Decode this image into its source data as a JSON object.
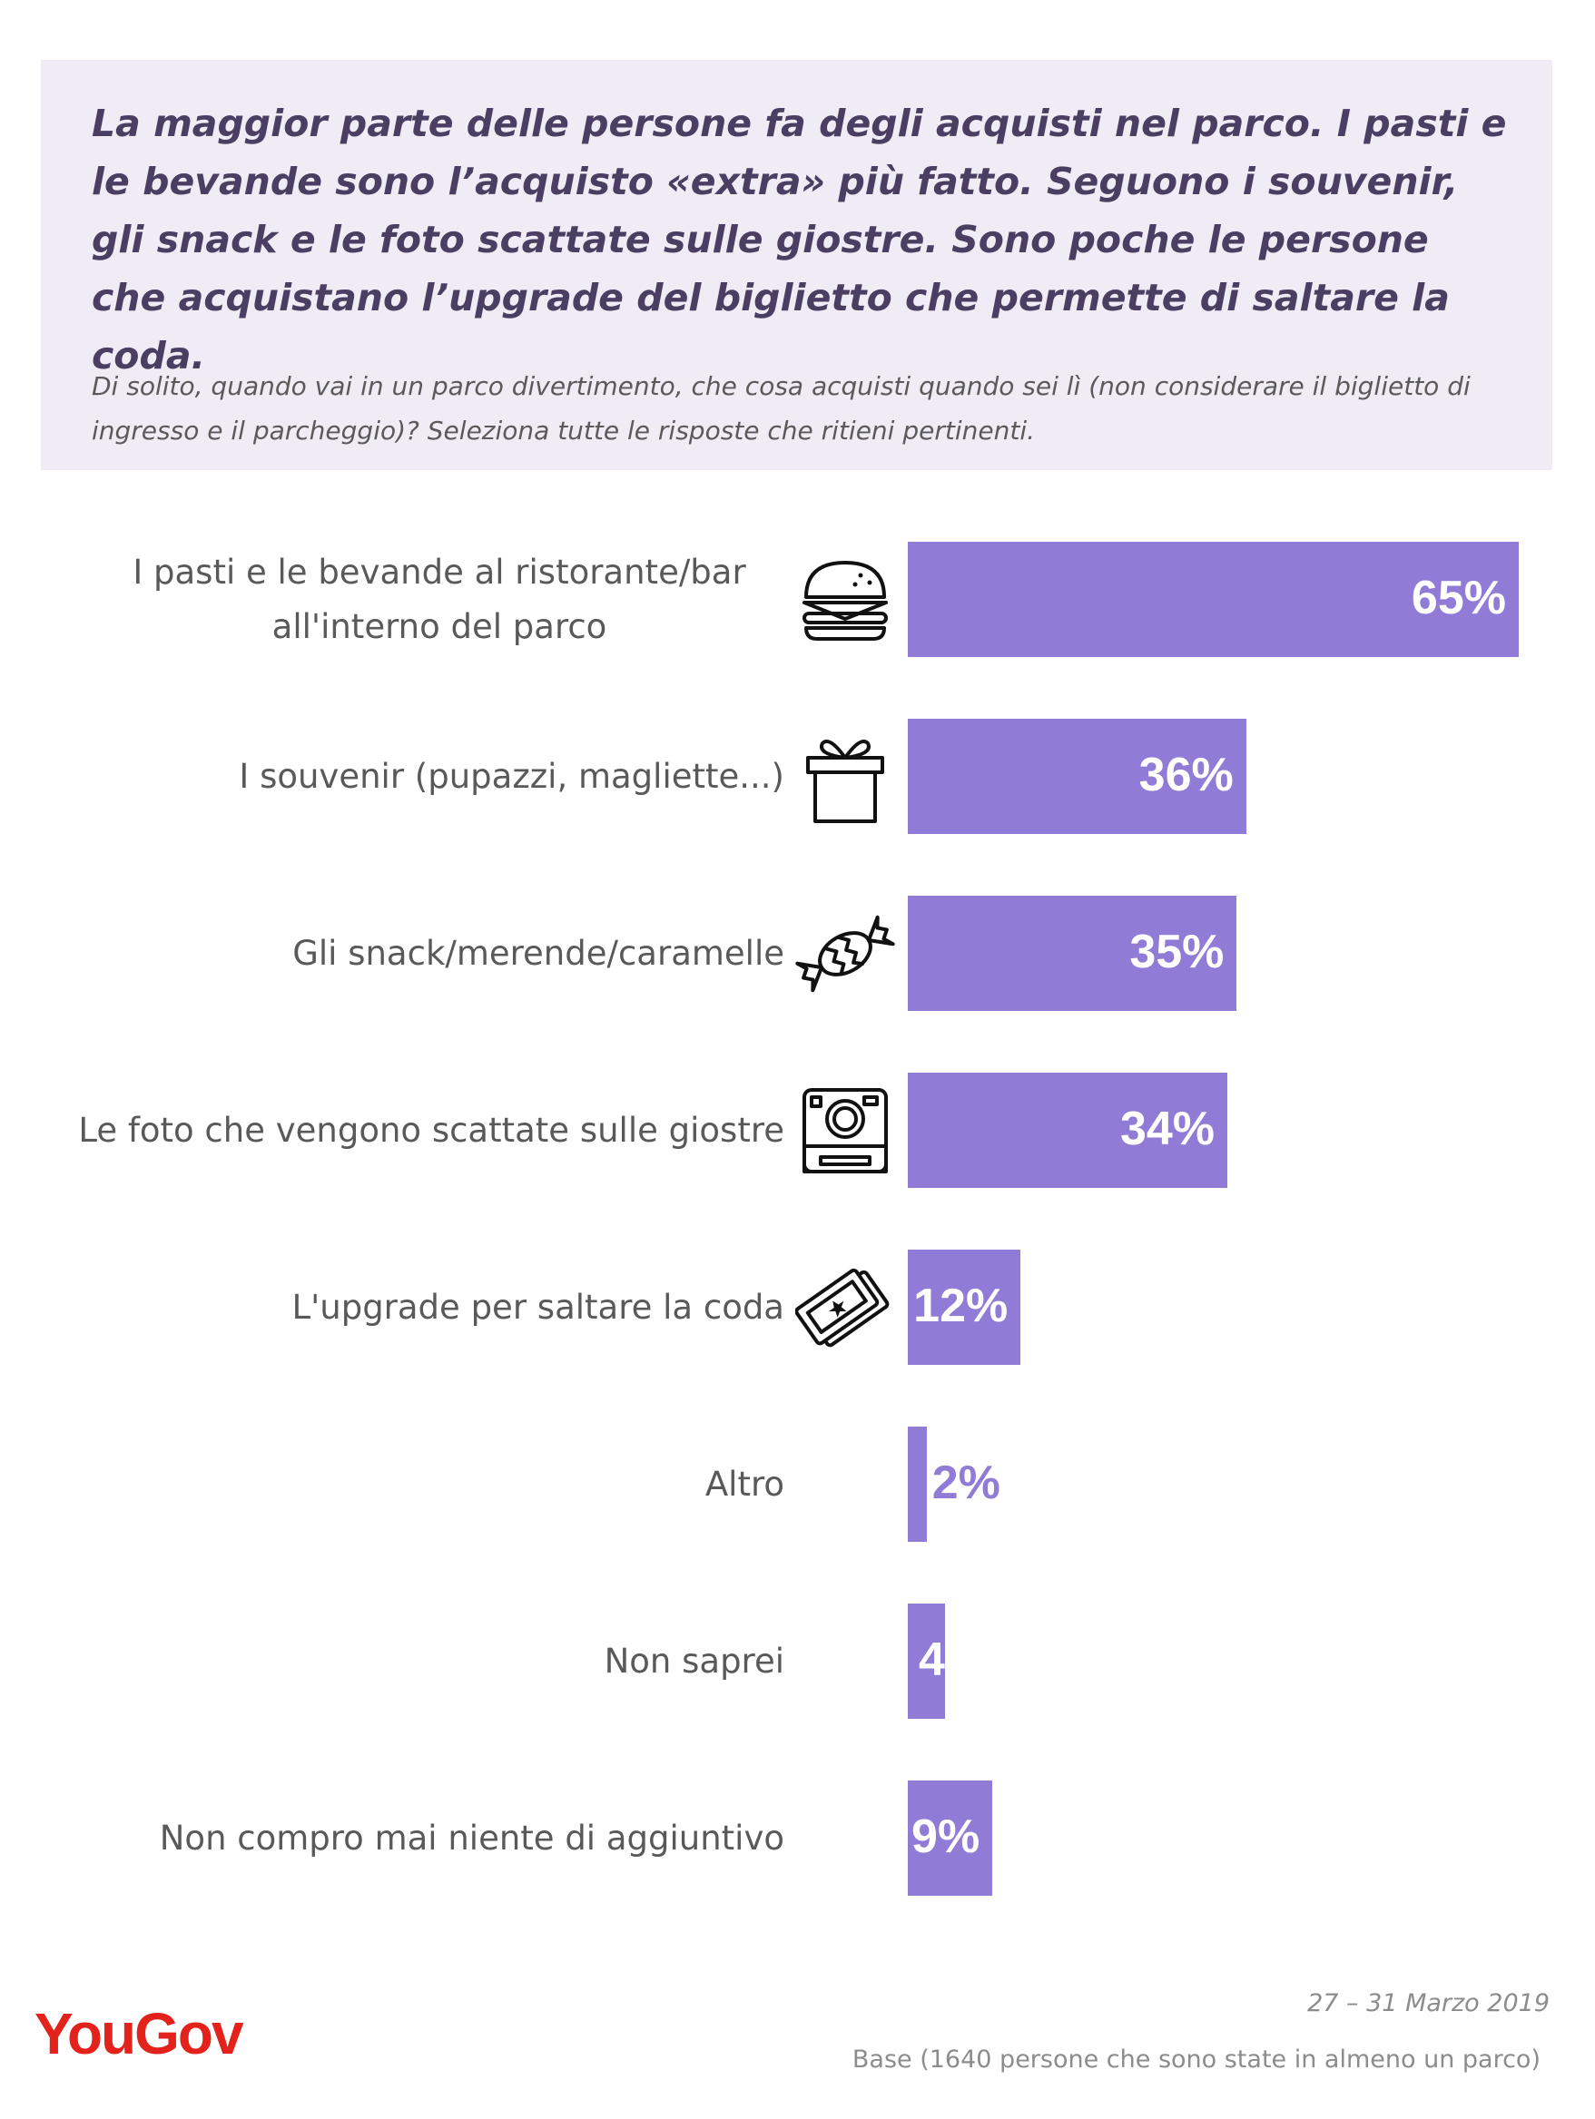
{
  "header": {
    "headline": "La maggior parte delle persone fa degli acquisti nel parco. I pasti e le bevande sono l’acquisto «extra» più fatto. Seguono i souvenir, gli snack e le foto scattate sulle giostre. Sono poche le persone che acquistano l’upgrade del biglietto che permette di saltare la coda.",
    "question": "Di solito, quando vai in un parco divertimento, che cosa acquisti quando sei lì (non considerare il biglietto di ingresso e il parcheggio)?  Seleziona tutte le risposte che ritieni pertinenti."
  },
  "chart_data": {
    "type": "bar",
    "orientation": "horizontal",
    "categories": [
      "I pasti e le bevande al ristorante/bar all'interno del parco",
      "I souvenir (pupazzi, magliette...)",
      "Gli snack/merende/caramelle",
      "Le foto che vengono scattate sulle giostre",
      "L'upgrade per saltare la coda",
      "Altro",
      "Non saprei",
      "Non compro mai niente di aggiuntivo"
    ],
    "values": [
      65,
      36,
      35,
      34,
      12,
      2,
      4,
      9
    ],
    "value_labels": [
      "65%",
      "36%",
      "35%",
      "34%",
      "12%",
      "2%",
      "4%",
      "9%"
    ],
    "icons": [
      "burger-icon",
      "gift-icon",
      "candy-icon",
      "camera-icon",
      "tickets-icon",
      null,
      null,
      null
    ],
    "unit": "%",
    "bar_color": "#907cd6",
    "xlim": [
      0,
      65
    ],
    "grid": false,
    "legend": "none"
  },
  "footer": {
    "date": "27 – 31 Marzo 2019",
    "base": "Base (1640 persone che sono state in almeno un parco)",
    "logo": "YouGov"
  }
}
